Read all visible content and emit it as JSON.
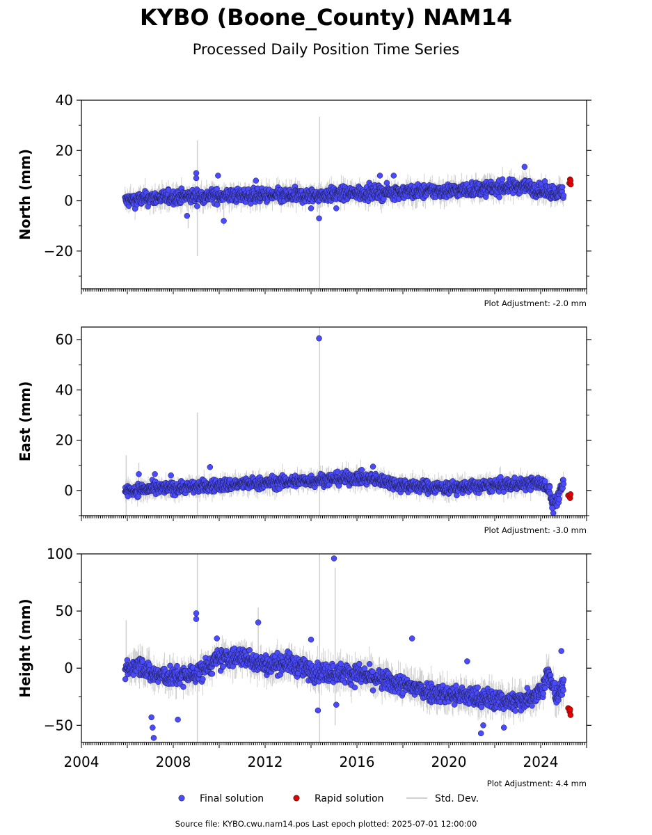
{
  "figure": {
    "title": "KYBO (Boone_County) NAM14",
    "subtitle": "Processed Daily Position Time Series",
    "source": "Source file: KYBO.cwu.nam14.pos  Last epoch plotted: 2025-07-01 12:00:00"
  },
  "legend": {
    "final_label": "Final solution",
    "rapid_label": "Rapid solution",
    "std_label": "Std. Dev.",
    "final_color": "#4a4aff",
    "rapid_color": "#e00000",
    "std_color": "#d0d0d0"
  },
  "chart_data": [
    {
      "type": "scatter",
      "ylabel": "North (mm)",
      "xlim": [
        2004,
        2026
      ],
      "ylim": [
        -35,
        40
      ],
      "yticks": [
        -20,
        0,
        20,
        40
      ],
      "xticks": [
        2004,
        2008,
        2012,
        2016,
        2020,
        2024
      ],
      "adjustment": "Plot Adjustment: -2.0 mm",
      "final_trend": [
        [
          2005.9,
          0
        ],
        [
          2007,
          1
        ],
        [
          2008,
          1.5
        ],
        [
          2010,
          2
        ],
        [
          2012,
          2
        ],
        [
          2014,
          2
        ],
        [
          2016,
          3
        ],
        [
          2018,
          3.5
        ],
        [
          2020,
          4
        ],
        [
          2022,
          5
        ],
        [
          2023.3,
          6
        ],
        [
          2024,
          4
        ],
        [
          2025.0,
          3
        ]
      ],
      "final_noise": 2.6,
      "outliers": [
        [
          2009.0,
          11
        ],
        [
          2009.0,
          9
        ],
        [
          2008.6,
          -6
        ],
        [
          2010.2,
          -8
        ],
        [
          2011.6,
          8
        ],
        [
          2014.35,
          -7
        ],
        [
          2015.1,
          -3
        ],
        [
          2017.0,
          10
        ],
        [
          2017.6,
          10
        ],
        [
          2023.3,
          13.5
        ],
        [
          2009.95,
          10
        ],
        [
          2014.0,
          -3
        ]
      ],
      "std_spikes": [
        [
          2009.05,
          -22,
          24
        ],
        [
          2014.37,
          -35,
          33.5
        ],
        [
          2008.65,
          -11,
          0
        ],
        [
          2010.2,
          -10,
          0
        ]
      ],
      "rapid": [
        [
          2025.25,
          7
        ],
        [
          2025.28,
          8.5
        ],
        [
          2025.31,
          6.5
        ],
        [
          2025.3,
          8
        ]
      ]
    },
    {
      "type": "scatter",
      "ylabel": "East (mm)",
      "xlim": [
        2004,
        2026
      ],
      "ylim": [
        -10,
        65
      ],
      "yticks": [
        0,
        20,
        40,
        60
      ],
      "xticks": [
        2004,
        2008,
        2012,
        2016,
        2020,
        2024
      ],
      "adjustment": "Plot Adjustment: -3.0 mm",
      "final_trend": [
        [
          2005.9,
          0
        ],
        [
          2008,
          1
        ],
        [
          2010,
          2
        ],
        [
          2012,
          3
        ],
        [
          2014,
          4
        ],
        [
          2016,
          5
        ],
        [
          2017,
          4
        ],
        [
          2018,
          2
        ],
        [
          2020,
          1
        ],
        [
          2022,
          2
        ],
        [
          2024.0,
          3
        ],
        [
          2024.4,
          0
        ],
        [
          2024.55,
          -6
        ],
        [
          2024.75,
          -3
        ],
        [
          2025.0,
          3
        ]
      ],
      "final_noise": 2.3,
      "outliers": [
        [
          2014.35,
          60.5
        ],
        [
          2016.7,
          9.5
        ],
        [
          2009.6,
          9.3
        ],
        [
          2006.5,
          6.5
        ],
        [
          2007.2,
          6.5
        ],
        [
          2007.9,
          6
        ],
        [
          2024.55,
          -9
        ],
        [
          2024.5,
          -7
        ]
      ],
      "std_spikes": [
        [
          2009.05,
          -10,
          31
        ],
        [
          2014.37,
          -10,
          65
        ],
        [
          2005.95,
          -10,
          14
        ],
        [
          2006.5,
          -2,
          11
        ]
      ],
      "rapid": [
        [
          2025.2,
          -2
        ],
        [
          2025.28,
          -3
        ],
        [
          2025.3,
          -1.5
        ]
      ]
    },
    {
      "type": "scatter",
      "ylabel": "Height (mm)",
      "xlim": [
        2004,
        2026
      ],
      "ylim": [
        -65,
        100
      ],
      "yticks": [
        -50,
        0,
        50,
        100
      ],
      "xticks": [
        2004,
        2008,
        2012,
        2016,
        2020,
        2024
      ],
      "xticklabels": [
        "2004",
        "2008",
        "2012",
        "2016",
        "2020",
        "2024"
      ],
      "adjustment": "Plot Adjustment: 4.4 mm",
      "final_trend": [
        [
          2005.9,
          -3
        ],
        [
          2006.5,
          5
        ],
        [
          2007,
          -5
        ],
        [
          2008,
          -8
        ],
        [
          2009,
          -5
        ],
        [
          2010,
          8
        ],
        [
          2011,
          10
        ],
        [
          2012,
          3
        ],
        [
          2013,
          5
        ],
        [
          2014,
          -3
        ],
        [
          2016,
          -5
        ],
        [
          2018,
          -15
        ],
        [
          2019.5,
          -22
        ],
        [
          2021,
          -25
        ],
        [
          2023,
          -30
        ],
        [
          2024,
          -20
        ],
        [
          2024.3,
          -5
        ],
        [
          2024.7,
          -25
        ],
        [
          2025.0,
          -15
        ]
      ],
      "final_noise": 8,
      "outliers": [
        [
          2009.0,
          48
        ],
        [
          2009.0,
          43
        ],
        [
          2011.7,
          40
        ],
        [
          2015.0,
          96
        ],
        [
          2014.0,
          25
        ],
        [
          2018.4,
          26
        ],
        [
          2007.1,
          -52
        ],
        [
          2007.15,
          -61
        ],
        [
          2007.05,
          -43
        ],
        [
          2014.3,
          -37
        ],
        [
          2015.1,
          -32
        ],
        [
          2021.4,
          -57
        ],
        [
          2020.8,
          6
        ],
        [
          2024.9,
          15
        ],
        [
          2022.4,
          -52
        ],
        [
          2008.2,
          -45
        ],
        [
          2021.5,
          -50
        ],
        [
          2009.9,
          26
        ]
      ],
      "std_spikes": [
        [
          2009.05,
          -65,
          100
        ],
        [
          2014.37,
          -65,
          100
        ],
        [
          2015.05,
          -50,
          88
        ],
        [
          2005.95,
          -10,
          42
        ],
        [
          2011.7,
          -5,
          53
        ]
      ],
      "rapid": [
        [
          2025.2,
          -35
        ],
        [
          2025.26,
          -38
        ],
        [
          2025.3,
          -41
        ],
        [
          2025.28,
          -36
        ]
      ]
    }
  ]
}
